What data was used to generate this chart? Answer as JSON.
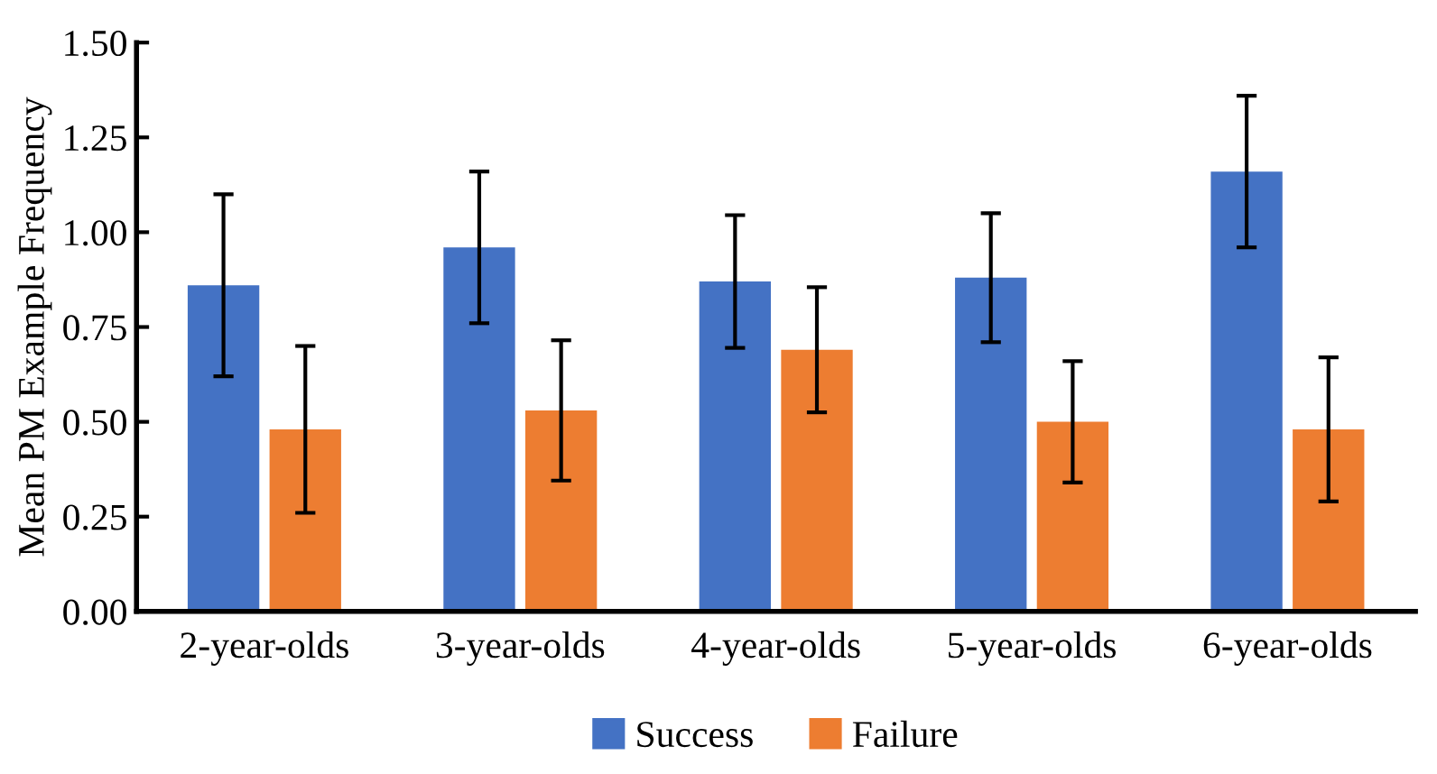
{
  "chart_data": {
    "type": "bar",
    "ylabel": "Mean PM Example Frequency",
    "categories": [
      "2-year-olds",
      "3-year-olds",
      "4-year-olds",
      "5-year-olds",
      "6-year-olds"
    ],
    "series": [
      {
        "name": "Success",
        "color": "#4472c4",
        "values": [
          0.86,
          0.96,
          0.87,
          0.88,
          1.16
        ],
        "errors": [
          0.24,
          0.2,
          0.175,
          0.17,
          0.2
        ]
      },
      {
        "name": "Failure",
        "color": "#ed7d31",
        "values": [
          0.48,
          0.53,
          0.69,
          0.5,
          0.48
        ],
        "errors": [
          0.22,
          0.185,
          0.165,
          0.16,
          0.19
        ]
      }
    ],
    "ylim": [
      0,
      1.5
    ],
    "yticks": [
      {
        "value": 0,
        "label": "0.00"
      },
      {
        "value": 0.25,
        "label": "0.25"
      },
      {
        "value": 0.5,
        "label": "0.50"
      },
      {
        "value": 0.75,
        "label": "0.75"
      },
      {
        "value": 1.0,
        "label": "1.00"
      },
      {
        "value": 1.25,
        "label": "1.25"
      },
      {
        "value": 1.5,
        "label": "1.50"
      }
    ],
    "grid": false,
    "legend": "bottom"
  }
}
